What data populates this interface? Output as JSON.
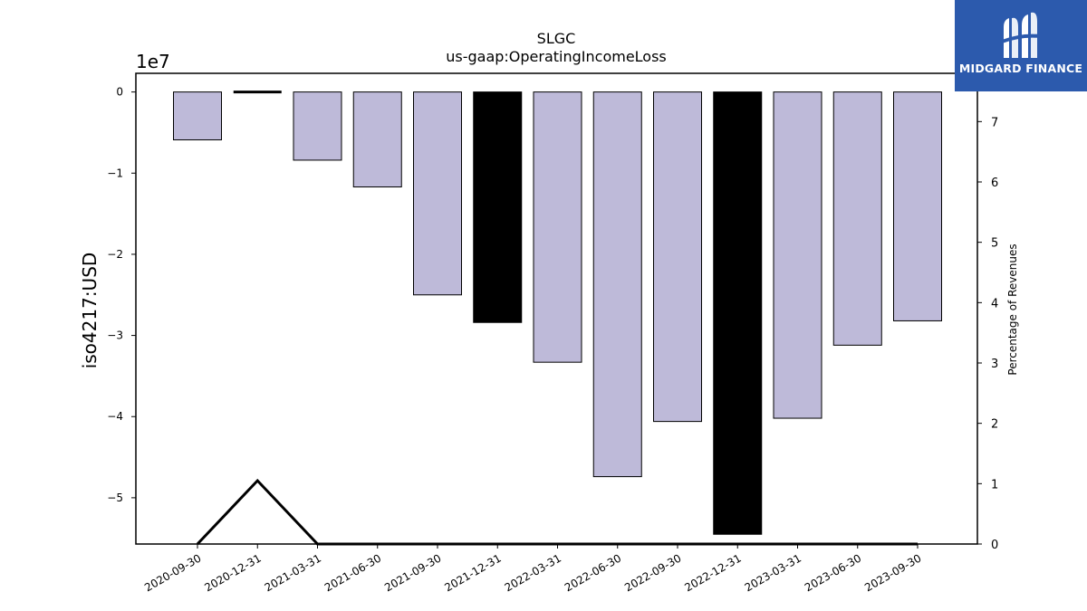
{
  "chart_data": {
    "type": "bar",
    "title": "SLGC",
    "subtitle": "us-gaap:OperatingIncomeLoss",
    "ylabel": "iso4217:USD",
    "y_offset_label": "1e7",
    "y2label": "Percentage of Revenues",
    "categories": [
      "2020-09-30",
      "2020-12-31",
      "2021-03-31",
      "2021-06-30",
      "2021-09-30",
      "2021-12-31",
      "2022-03-31",
      "2022-06-30",
      "2022-09-30",
      "2022-12-31",
      "2023-03-31",
      "2023-06-30",
      "2023-09-30"
    ],
    "series": [
      {
        "values": [
          -5900000,
          0,
          -8400000,
          -11700000,
          -25000000,
          -28400000,
          -33300000,
          -47400000,
          -40600000,
          -54500000,
          -40200000,
          -31200000,
          -28200000
        ],
        "highlighted": [
          false,
          false,
          false,
          false,
          false,
          true,
          false,
          false,
          false,
          true,
          false,
          false,
          false
        ]
      },
      {
        "values": [
          0,
          1.05,
          0,
          0,
          0,
          0,
          0,
          0,
          0,
          0,
          0,
          0,
          0
        ]
      }
    ],
    "ylim": [
      -55700000,
      2300000
    ],
    "y_ticks": [
      0,
      -10000000,
      -20000000,
      -30000000,
      -40000000,
      -50000000
    ],
    "y_tick_labels": [
      "0",
      "−1",
      "−2",
      "−3",
      "−4",
      "−5"
    ],
    "y2lim": [
      0,
      7.8
    ],
    "y2_ticks": [
      0,
      1,
      2,
      3,
      4,
      5,
      6,
      7
    ],
    "y2_tick_labels": [
      "0",
      "1",
      "2",
      "3",
      "4",
      "5",
      "6",
      "7"
    ],
    "colors": {
      "bar": "#bebad9",
      "highlight": "#000000",
      "edge": "#000000",
      "line": "#000000"
    },
    "legend": false,
    "grid": false
  },
  "logo": {
    "text": "MIDGARD FINANCE",
    "background": "#2c5aad"
  }
}
